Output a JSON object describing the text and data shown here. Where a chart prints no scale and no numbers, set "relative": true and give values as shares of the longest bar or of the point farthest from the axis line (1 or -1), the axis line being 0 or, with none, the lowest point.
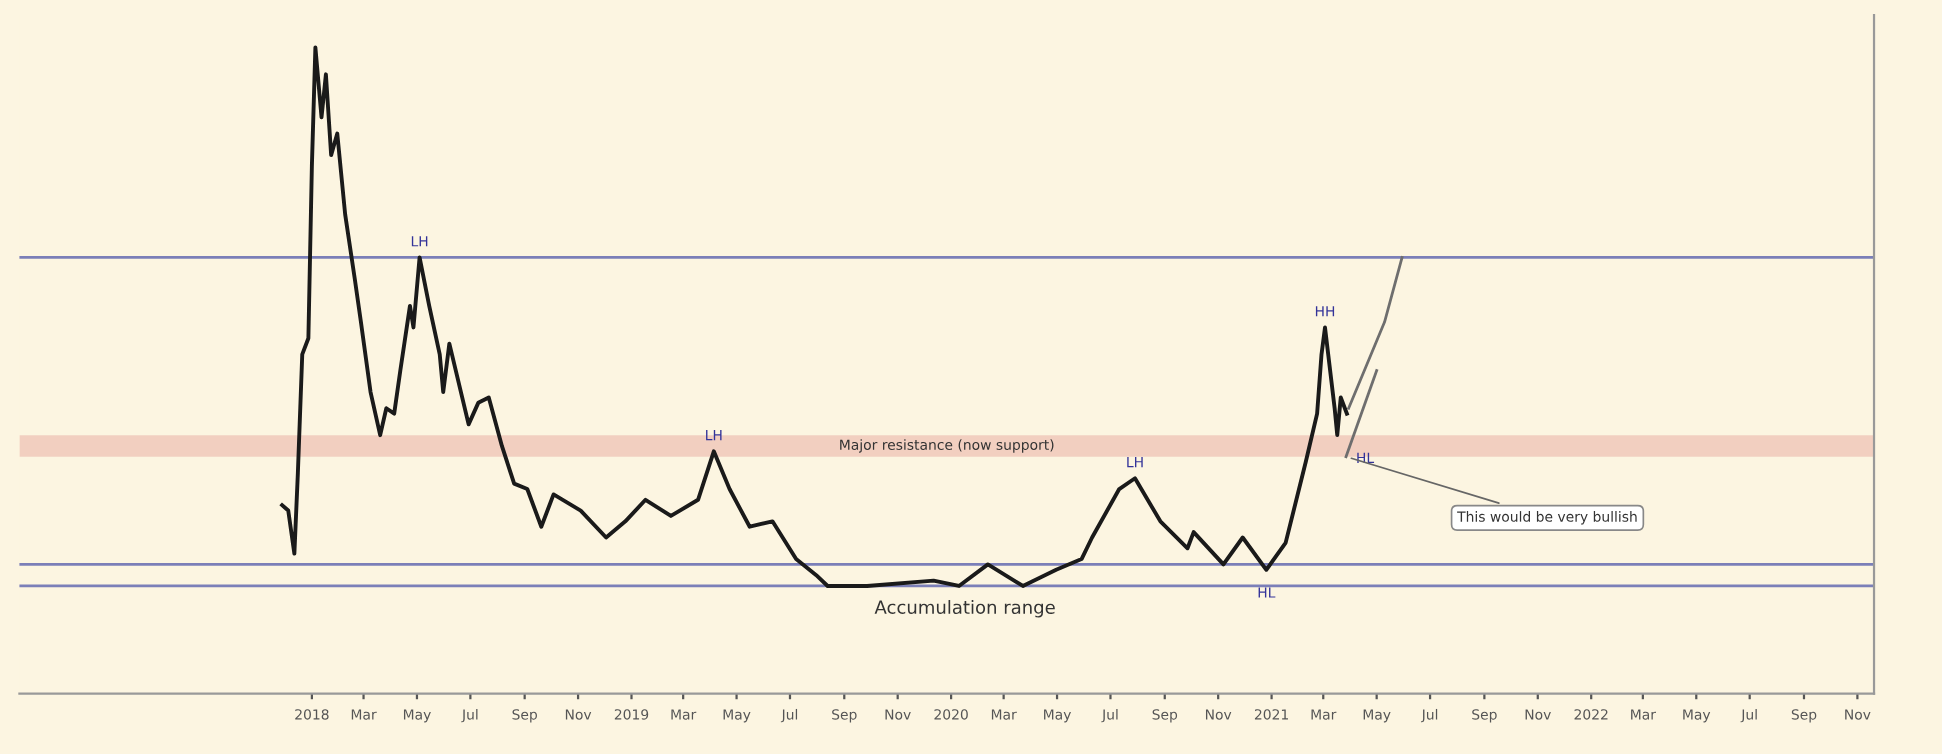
{
  "chart_data": {
    "type": "line",
    "relative": true,
    "tick_labels": "x",
    "marker": "none",
    "line_style": "solid",
    "xlim": [
      "2017-02-01",
      "2022-11-20"
    ],
    "xticks": [
      {
        "value": "2018-01-01",
        "label": "2018"
      },
      {
        "value": "2018-03-01",
        "label": "Mar"
      },
      {
        "value": "2018-05-01",
        "label": "May"
      },
      {
        "value": "2018-07-01",
        "label": "Jul"
      },
      {
        "value": "2018-09-01",
        "label": "Sep"
      },
      {
        "value": "2018-11-01",
        "label": "Nov"
      },
      {
        "value": "2019-01-01",
        "label": "2019"
      },
      {
        "value": "2019-03-01",
        "label": "Mar"
      },
      {
        "value": "2019-05-01",
        "label": "May"
      },
      {
        "value": "2019-07-01",
        "label": "Jul"
      },
      {
        "value": "2019-09-01",
        "label": "Sep"
      },
      {
        "value": "2019-11-01",
        "label": "Nov"
      },
      {
        "value": "2020-01-01",
        "label": "2020"
      },
      {
        "value": "2020-03-01",
        "label": "Mar"
      },
      {
        "value": "2020-05-01",
        "label": "May"
      },
      {
        "value": "2020-07-01",
        "label": "Jul"
      },
      {
        "value": "2020-09-01",
        "label": "Sep"
      },
      {
        "value": "2020-11-01",
        "label": "Nov"
      },
      {
        "value": "2021-01-01",
        "label": "2021"
      },
      {
        "value": "2021-03-01",
        "label": "Mar"
      },
      {
        "value": "2021-05-01",
        "label": "May"
      },
      {
        "value": "2021-07-01",
        "label": "Jul"
      },
      {
        "value": "2021-09-01",
        "label": "Sep"
      },
      {
        "value": "2021-11-01",
        "label": "Nov"
      },
      {
        "value": "2022-01-01",
        "label": "2022"
      },
      {
        "value": "2022-03-01",
        "label": "Mar"
      },
      {
        "value": "2022-05-01",
        "label": "May"
      },
      {
        "value": "2022-07-01",
        "label": "Jul"
      },
      {
        "value": "2022-09-01",
        "label": "Sep"
      },
      {
        "value": "2022-11-01",
        "label": "Nov"
      }
    ],
    "series": [
      {
        "color": "#1a1a1a",
        "x": [
          "2017-11-28",
          "2017-12-05",
          "2017-12-12",
          "2017-12-16",
          "2017-12-21",
          "2017-12-28",
          "2018-01-01",
          "2018-01-05",
          "2018-01-12",
          "2018-01-17",
          "2018-01-23",
          "2018-01-30",
          "2018-02-08",
          "2018-02-19",
          "2018-02-26",
          "2018-03-09",
          "2018-03-20",
          "2018-03-27",
          "2018-04-05",
          "2018-04-12",
          "2018-04-23",
          "2018-04-27",
          "2018-05-04",
          "2018-05-15",
          "2018-05-27",
          "2018-05-31",
          "2018-06-07",
          "2018-06-29",
          "2018-07-10",
          "2018-07-22",
          "2018-08-06",
          "2018-08-20",
          "2018-09-04",
          "2018-09-20",
          "2018-10-04",
          "2018-11-04",
          "2018-12-03",
          "2018-12-25",
          "2019-01-17",
          "2019-02-15",
          "2019-03-18",
          "2019-04-05",
          "2019-04-23",
          "2019-05-16",
          "2019-06-11",
          "2019-07-08",
          "2019-07-31",
          "2019-08-13",
          "2019-09-27",
          "2019-12-12",
          "2020-01-10",
          "2020-02-12",
          "2020-03-23",
          "2020-04-30",
          "2020-05-29",
          "2020-06-10",
          "2020-07-11",
          "2020-07-29",
          "2020-08-27",
          "2020-09-27",
          "2020-10-04",
          "2020-11-07",
          "2020-11-29",
          "2020-12-26",
          "2021-01-17",
          "2021-02-09",
          "2021-02-22",
          "2021-02-27",
          "2021-03-03",
          "2021-03-14",
          "2021-03-17",
          "2021-03-21",
          "2021-03-28"
        ],
        "values": [
          0.15,
          0.14,
          0.06,
          0.21,
          0.43,
          0.46,
          0.78,
          1.0,
          0.87,
          0.95,
          0.8,
          0.84,
          0.69,
          0.57,
          0.49,
          0.36,
          0.28,
          0.33,
          0.32,
          0.4,
          0.52,
          0.48,
          0.61,
          0.52,
          0.43,
          0.36,
          0.45,
          0.3,
          0.34,
          0.35,
          0.26,
          0.19,
          0.18,
          0.11,
          0.17,
          0.14,
          0.09,
          0.12,
          0.16,
          0.13,
          0.16,
          0.25,
          0.18,
          0.11,
          0.12,
          0.05,
          0.02,
          0.0,
          0.0,
          0.01,
          0.0,
          0.04,
          0.0,
          0.03,
          0.05,
          0.09,
          0.18,
          0.2,
          0.12,
          0.07,
          0.1,
          0.04,
          0.09,
          0.03,
          0.08,
          0.23,
          0.32,
          0.43,
          0.48,
          0.33,
          0.28,
          0.35,
          0.32
        ]
      },
      {
        "color": "#6e6e6e",
        "x": [
          "2021-03-30",
          "2021-05-10",
          "2021-05-30"
        ],
        "values": [
          0.33,
          0.49,
          0.61
        ]
      },
      {
        "color": "#6e6e6e",
        "x": [
          "2021-03-27",
          "2021-05-01"
        ],
        "values": [
          0.24,
          0.4
        ]
      }
    ],
    "ref_lines": [
      {
        "axis": "y",
        "value": 0.61,
        "color": "#7b7fb8"
      },
      {
        "axis": "y",
        "value": 0.04,
        "color": "#7b7fb8"
      },
      {
        "axis": "y",
        "value": 0.0,
        "color": "#7b7fb8"
      }
    ],
    "bands": [
      {
        "axis": "y",
        "from": 0.24,
        "to": 0.28,
        "label": "Major resistance (now support)",
        "color": "#f2cfc0"
      }
    ],
    "annotations": [
      {
        "text": "LH",
        "x": "2018-05-04",
        "y": 0.61
      },
      {
        "text": "LH",
        "x": "2019-04-05",
        "y": 0.25
      },
      {
        "text": "LH",
        "x": "2020-07-29",
        "y": 0.2
      },
      {
        "text": "HH",
        "x": "2021-03-03",
        "y": 0.48
      },
      {
        "text": "HL",
        "x": "2020-12-26",
        "y": 0.03
      },
      {
        "text": "HL",
        "x": "2021-03-17",
        "y": 0.28
      },
      {
        "text": "Accumulation range",
        "x": "2020-01-17",
        "y": 0.0
      },
      {
        "text": "This would be very bullish",
        "x": "2021-03-27",
        "y": 0.24
      }
    ]
  }
}
